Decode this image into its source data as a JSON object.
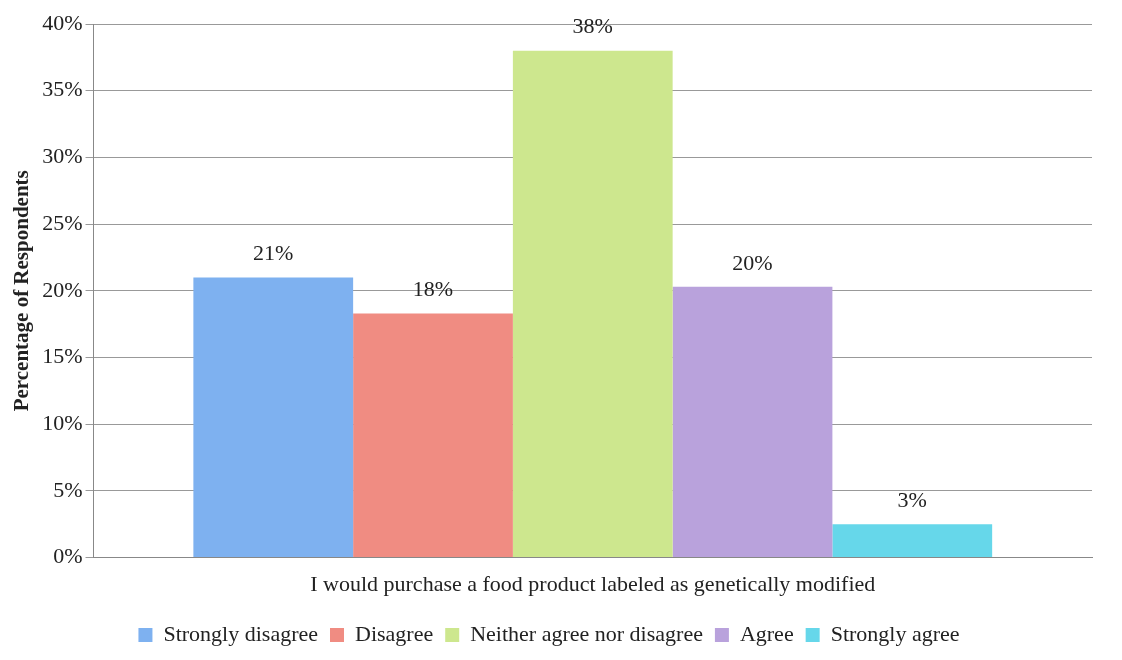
{
  "chart_data": {
    "type": "bar",
    "ylabel": "Percentage of Respondents",
    "categories": [
      "I would purchase a food product labeled as genetically modified"
    ],
    "series": [
      {
        "name": "Strongly disagree",
        "color": "#7eb1f0",
        "values": [
          21
        ],
        "value_labels": [
          "21%"
        ]
      },
      {
        "name": "Disagree",
        "color": "#f08c82",
        "values": [
          18.3
        ],
        "value_labels": [
          "18%"
        ]
      },
      {
        "name": "Neither agree nor disagree",
        "color": "#cde78e",
        "values": [
          38
        ],
        "value_labels": [
          "38%"
        ]
      },
      {
        "name": "Agree",
        "color": "#b9a2dc",
        "values": [
          20.3
        ],
        "value_labels": [
          "20%"
        ]
      },
      {
        "name": "Strongly agree",
        "color": "#66d7ea",
        "values": [
          2.5
        ],
        "value_labels": [
          "3%"
        ]
      }
    ],
    "ylim": [
      0,
      40
    ],
    "yticks": [
      {
        "value": 0,
        "label": "0%"
      },
      {
        "value": 5,
        "label": "5%"
      },
      {
        "value": 10,
        "label": "10%"
      },
      {
        "value": 15,
        "label": "15%"
      },
      {
        "value": 20,
        "label": "20%"
      },
      {
        "value": 25,
        "label": "25%"
      },
      {
        "value": 30,
        "label": "30%"
      },
      {
        "value": 35,
        "label": "35%"
      },
      {
        "value": 40,
        "label": "40%"
      }
    ],
    "grid": "y",
    "legend": "bottom"
  }
}
